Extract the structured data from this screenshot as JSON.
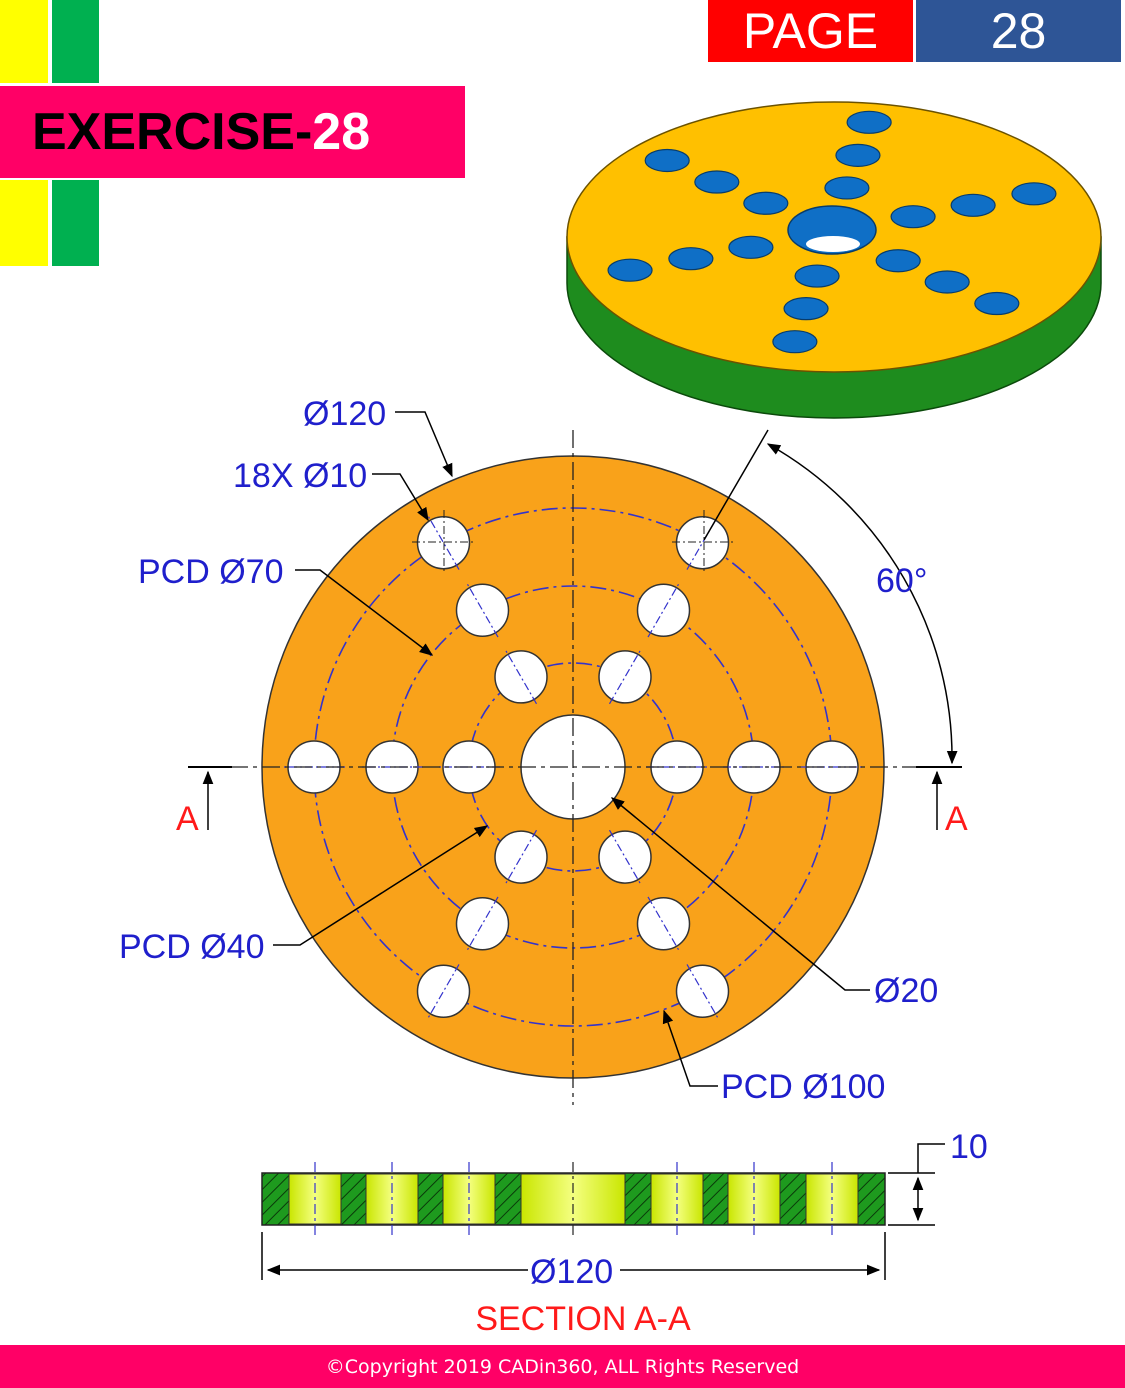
{
  "header": {
    "exercise_word": "EXERCISE-",
    "exercise_number": "28",
    "page_label": "PAGE",
    "page_number": "28"
  },
  "dimensions": {
    "outer_diameter": "Ø120",
    "holes": "18X Ø10",
    "pcd_70": "PCD Ø70",
    "angle": "60°",
    "pcd_40": "PCD Ø40",
    "center_hole": "Ø20",
    "pcd_100": "PCD Ø100",
    "thickness": "10",
    "section_diameter": "Ø120"
  },
  "section": {
    "marker_left": "A",
    "marker_right": "A",
    "title": "SECTION A-A"
  },
  "footer": {
    "copyright": "©Copyright 2019 CADin360, ALL Rights Reserved"
  },
  "colors": {
    "plate_fill": "#f9a21a",
    "iso_top": "#ffc000",
    "iso_side": "#1e8c1e",
    "hole_blue": "#0f6fc6",
    "dimension_text": "#1f1fcc",
    "section_text": "#ff1a1a"
  }
}
